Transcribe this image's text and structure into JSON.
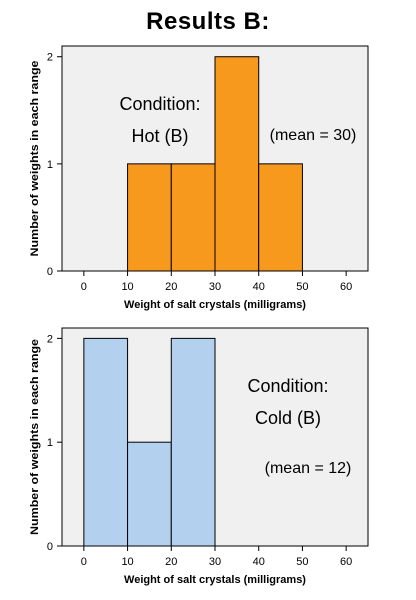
{
  "page": {
    "title": "Results  B:"
  },
  "chart_data": [
    {
      "type": "bar",
      "bins": [
        [
          10,
          20
        ],
        [
          20,
          30
        ],
        [
          30,
          40
        ],
        [
          40,
          50
        ]
      ],
      "values": [
        1,
        1,
        2,
        1
      ],
      "color": "#f7991c",
      "background": "#f0f0f0",
      "xlabel": "Weight of salt crystals (milligrams)",
      "ylabel": "Number of weights in each range",
      "xlim": [
        -5,
        65
      ],
      "ylim": [
        0,
        2.1
      ],
      "xticks": [
        0,
        10,
        20,
        30,
        40,
        50,
        60
      ],
      "yticks": [
        0,
        1,
        2
      ],
      "grid": false,
      "annotations": [
        "Condition:",
        "Hot (B)",
        "(mean = 30)"
      ]
    },
    {
      "type": "bar",
      "bins": [
        [
          0,
          10
        ],
        [
          10,
          20
        ],
        [
          20,
          30
        ]
      ],
      "values": [
        2,
        1,
        2
      ],
      "color": "#b3d1ee",
      "background": "#f0f0f0",
      "xlabel": "Weight of salt crystals (milligrams)",
      "ylabel": "Number of weights in each range",
      "xlim": [
        -5,
        65
      ],
      "ylim": [
        0,
        2.1
      ],
      "xticks": [
        0,
        10,
        20,
        30,
        40,
        50,
        60
      ],
      "yticks": [
        0,
        1,
        2
      ],
      "grid": false,
      "annotations": [
        "Condition:",
        "Cold (B)",
        "(mean = 12)"
      ]
    }
  ]
}
